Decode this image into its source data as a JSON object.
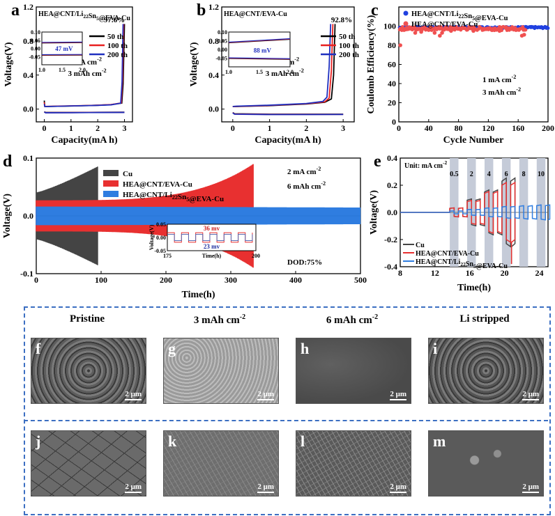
{
  "chart_data": [
    {
      "id": "a",
      "type": "line",
      "panel_label": "a",
      "title": "HEA@CNT/Li22Sn5@EVA-Cu",
      "xlabel": "Capacity(mA h)",
      "ylabel": "Voltage(V)",
      "xlim": [
        -0.3,
        3.3
      ],
      "ylim": [
        -0.15,
        1.2
      ],
      "xticks": [
        0,
        1,
        2,
        3
      ],
      "yticks": [
        0.0,
        0.4,
        0.8,
        1.2
      ],
      "annotations": [
        "97.6%",
        "1 mA cm-2",
        "3 mAh cm-2"
      ],
      "series": [
        {
          "name": "50 th",
          "color": "#000000",
          "x": [
            0,
            0.02,
            0.05,
            0.1,
            0.5,
            1.0,
            1.5,
            2.0,
            2.5,
            2.9,
            2.95,
            3.0
          ],
          "y": [
            0.1,
            0.03,
            0.03,
            0.03,
            0.033,
            0.036,
            0.04,
            0.045,
            0.052,
            0.07,
            0.3,
            1.0
          ]
        },
        {
          "name": "100 th",
          "color": "#e82020",
          "x": [
            0,
            0.02,
            0.05,
            0.1,
            0.5,
            1.0,
            1.5,
            2.0,
            2.5,
            2.88,
            2.93,
            2.97
          ],
          "y": [
            0.08,
            0.032,
            0.032,
            0.032,
            0.035,
            0.038,
            0.041,
            0.046,
            0.053,
            0.072,
            0.35,
            1.0
          ]
        },
        {
          "name": "200 th",
          "color": "#1f2fbf",
          "x": [
            0,
            0.02,
            0.05,
            0.1,
            0.5,
            1.0,
            1.5,
            2.0,
            2.5,
            2.86,
            2.91,
            2.95
          ],
          "y": [
            0.06,
            0.03,
            0.03,
            0.031,
            0.033,
            0.037,
            0.04,
            0.044,
            0.05,
            0.07,
            0.32,
            1.0
          ]
        },
        {
          "name": "50 th (plating)",
          "color": "#000000",
          "x": [
            0,
            0.05,
            1,
            2,
            3
          ],
          "y": [
            -0.03,
            -0.04,
            -0.04,
            -0.038,
            -0.037
          ]
        },
        {
          "name": "100 th (plating)",
          "color": "#e82020",
          "x": [
            0,
            0.05,
            1,
            2,
            3
          ],
          "y": [
            -0.032,
            -0.042,
            -0.041,
            -0.039,
            -0.038
          ]
        },
        {
          "name": "200 th (plating)",
          "color": "#1f2fbf",
          "x": [
            0,
            0.05,
            1,
            2,
            3
          ],
          "y": [
            -0.034,
            -0.043,
            -0.042,
            -0.04,
            -0.039
          ]
        }
      ],
      "inset": {
        "xlim": [
          1.0,
          2.0
        ],
        "ylim": [
          -0.1,
          0.1
        ],
        "xticks": [
          "1.0",
          "1.5",
          "2.0"
        ],
        "yticks": [
          "0.10",
          "0.05",
          "0.00",
          "-0.05"
        ],
        "annotation": "47 mV",
        "upper": [
          0.035,
          0.037
        ],
        "lower": [
          -0.04,
          -0.039
        ]
      }
    },
    {
      "id": "b",
      "type": "line",
      "panel_label": "b",
      "title": "HEA@CNT/EVA-Cu",
      "xlabel": "Capacity(mA h)",
      "ylabel": "Voltage(V)",
      "xlim": [
        -0.3,
        3.3
      ],
      "ylim": [
        -0.15,
        1.2
      ],
      "xticks": [
        0,
        1,
        2,
        3
      ],
      "yticks": [
        0.0,
        0.4,
        0.8,
        1.2
      ],
      "annotations": [
        "92.8%",
        "1 mA cm-2",
        "3 mAh cm-2"
      ],
      "series": [
        {
          "name": "50 th",
          "color": "#000000",
          "x": [
            0,
            0.03,
            0.1,
            1.0,
            2.0,
            2.5,
            2.68,
            2.74,
            2.78
          ],
          "y": [
            0.03,
            0.03,
            0.03,
            0.04,
            0.06,
            0.08,
            0.12,
            0.4,
            1.0
          ]
        },
        {
          "name": "100 th",
          "color": "#e82020",
          "x": [
            0,
            0.03,
            0.1,
            1.0,
            2.0,
            2.5,
            2.62,
            2.68,
            2.72
          ],
          "y": [
            0.03,
            0.03,
            0.032,
            0.043,
            0.063,
            0.085,
            0.13,
            0.45,
            1.0
          ]
        },
        {
          "name": "200 th",
          "color": "#1f2fbf",
          "x": [
            0,
            0.03,
            0.1,
            1.0,
            2.0,
            2.45,
            2.56,
            2.62,
            2.66
          ],
          "y": [
            0.03,
            0.032,
            0.034,
            0.046,
            0.066,
            0.09,
            0.14,
            0.5,
            1.0
          ]
        },
        {
          "name": "50 th (plating)",
          "color": "#000000",
          "x": [
            0,
            0.05,
            1,
            2,
            3
          ],
          "y": [
            -0.04,
            -0.055,
            -0.06,
            -0.06,
            -0.06
          ]
        },
        {
          "name": "100 th (plating)",
          "color": "#e82020",
          "x": [
            0,
            0.05,
            1,
            2,
            3
          ],
          "y": [
            -0.042,
            -0.058,
            -0.062,
            -0.062,
            -0.062
          ]
        },
        {
          "name": "200 th (plating)",
          "color": "#1f2fbf",
          "x": [
            0,
            0.05,
            1,
            2,
            3
          ],
          "y": [
            -0.045,
            -0.06,
            -0.064,
            -0.064,
            -0.063
          ]
        }
      ],
      "inset": {
        "xlim": [
          1.0,
          2.0
        ],
        "ylim": [
          -0.1,
          0.1
        ],
        "xticks": [
          "1.0",
          "1.5",
          "2.0"
        ],
        "yticks": [
          "0.10",
          "0.05",
          "0.00",
          "-0.05"
        ],
        "annotation": "88 mV",
        "upper": [
          0.04,
          0.06
        ],
        "lower": [
          -0.05,
          -0.055
        ]
      }
    },
    {
      "id": "c",
      "type": "scatter",
      "panel_label": "c",
      "xlabel": "Cycle Number",
      "ylabel": "Coulomb Efficiency(%)",
      "xlim": [
        0,
        200
      ],
      "ylim": [
        0,
        120
      ],
      "xticks": [
        0,
        40,
        80,
        120,
        160,
        200
      ],
      "yticks": [
        0,
        20,
        40,
        60,
        80,
        100
      ],
      "annotations": [
        "1 mA cm-2",
        "3 mAh cm-2"
      ],
      "series": [
        {
          "name": "HEA@CNT/Li22Sn5@EVA-Cu",
          "color": "#2040e0",
          "n": 200,
          "mean": 98.5,
          "spread": 1.0
        },
        {
          "name": "HEA@CNT/EVA-Cu",
          "color": "#f05050",
          "n": 170,
          "mean": 97.5,
          "spread": 2.0,
          "outliers": [
            [
              2,
              80
            ],
            [
              22,
              93
            ],
            [
              30,
              94
            ],
            [
              48,
              93
            ],
            [
              55,
              90
            ],
            [
              58,
              93
            ],
            [
              70,
              95
            ],
            [
              100,
              95
            ],
            [
              135,
              95
            ],
            [
              165,
              90
            ],
            [
              168,
              91
            ]
          ]
        }
      ]
    },
    {
      "id": "d",
      "type": "line",
      "panel_label": "d",
      "xlabel": "Time(h)",
      "ylabel": "Voltage(V)",
      "xlim": [
        0,
        500
      ],
      "ylim": [
        -0.1,
        0.1
      ],
      "xticks": [
        0,
        100,
        200,
        300,
        400,
        500
      ],
      "yticks": [
        -0.1,
        0.0,
        0.1
      ],
      "annotations": [
        "2 mA cm-2",
        "6 mAh cm-2",
        "DOD:75%"
      ],
      "series": [
        {
          "name": "Cu",
          "color": "#444444",
          "end": 95,
          "amp_start": 0.045,
          "amp_end": 0.095
        },
        {
          "name": "HEA@CNT/EVA-Cu",
          "color": "#e83030",
          "end": 335,
          "amp_start": 0.03,
          "amp_end": 0.1
        },
        {
          "name": "HEA@CNT/Li22Sn5@EVA-Cu",
          "color": "#2f7de0",
          "end": 500,
          "amp_start": 0.018,
          "amp_end": 0.016
        }
      ],
      "inset": {
        "xlim": [
          175,
          200
        ],
        "ylim": [
          -0.05,
          0.05
        ],
        "xlabel": "Time(h)",
        "ylabel": "Voltage(V)",
        "xticks": [
          "175",
          "200"
        ],
        "yticks": [
          "0.05",
          "0.00",
          "-0.05"
        ],
        "annotations": [
          "36 mv",
          "23 mv"
        ]
      }
    },
    {
      "id": "e",
      "type": "line",
      "panel_label": "e",
      "xlabel": "Time(h)",
      "ylabel": "Voltage(V)",
      "xlim": [
        8,
        25
      ],
      "ylim": [
        -0.4,
        0.4
      ],
      "xticks": [
        8,
        12,
        16,
        20,
        24
      ],
      "yticks": [
        -0.4,
        -0.2,
        0.0,
        0.2,
        0.4
      ],
      "annotations": [
        "Unit: mA cm-2"
      ],
      "rate_labels": [
        "0.5",
        "2",
        "4",
        "6",
        "8",
        "10"
      ],
      "rate_bands": [
        [
          13.7,
          14.7
        ],
        [
          15.7,
          16.7
        ],
        [
          17.7,
          18.7
        ],
        [
          19.7,
          20.7
        ],
        [
          21.7,
          22.7
        ],
        [
          23.7,
          24.7
        ]
      ],
      "rate_label_x": [
        14.2,
        16.2,
        18.2,
        20.2,
        22.2,
        24.2
      ],
      "series": [
        {
          "name": "Cu",
          "color": "#444444",
          "amps": [
            0.03,
            0.09,
            0.15,
            0.23
          ],
          "end": 20.8
        },
        {
          "name": "HEA@CNT/EVA-Cu",
          "color": "#e83030",
          "amps": [
            0.03,
            0.08,
            0.14,
            0.2
          ],
          "end": 20.8
        },
        {
          "name": "HEA@CNT/Li22Sn5@EVA-Cu",
          "color": "#2f7de0",
          "amps": [
            0.01,
            0.02,
            0.03,
            0.04,
            0.045,
            0.05
          ],
          "end": 25
        }
      ]
    }
  ],
  "sem": {
    "column_headers": [
      "Pristine",
      "3 mAh cm-2",
      "6 mAh cm-2",
      "Li stripped"
    ],
    "scale_bar": "2 μm",
    "panels": [
      {
        "letter": "f",
        "tone": "#5d5d5d",
        "texture": "coarse"
      },
      {
        "letter": "g",
        "tone": "#9a9a9a",
        "texture": "fine-bright"
      },
      {
        "letter": "h",
        "tone": "#4a4a4a",
        "texture": "smooth"
      },
      {
        "letter": "i",
        "tone": "#555555",
        "texture": "coarse"
      },
      {
        "letter": "j",
        "tone": "#6a6a6a",
        "texture": "cells"
      },
      {
        "letter": "k",
        "tone": "#6e6e6e",
        "texture": "flakes"
      },
      {
        "letter": "l",
        "tone": "#5a5a5a",
        "texture": "flakes"
      },
      {
        "letter": "m",
        "tone": "#5a5a5a",
        "texture": "particles"
      }
    ]
  }
}
